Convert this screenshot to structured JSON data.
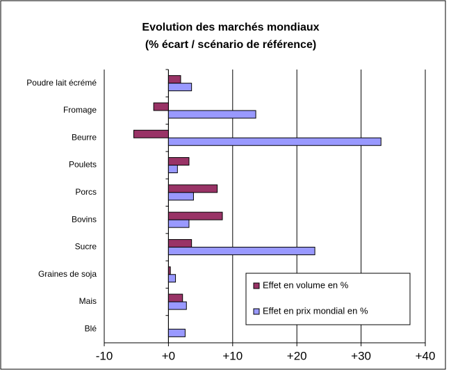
{
  "chart_data": {
    "type": "barh",
    "title": "Evolution des marchés mondiaux",
    "subtitle": "(% écart / scénario de référence)",
    "categories": [
      "Poudre lait écrémé",
      "Fromage",
      "Beurre",
      "Poulets",
      "Porcs",
      "Bovins",
      "Sucre",
      "Graines de soja",
      "Mais",
      "Blé"
    ],
    "series": [
      {
        "name": "Effet en volume en %",
        "color": "#993366",
        "values": [
          1.9,
          -2.3,
          -5.4,
          3.2,
          7.6,
          8.4,
          3.6,
          0.3,
          2.2,
          0
        ]
      },
      {
        "name": "Effet en prix mondial en %",
        "color": "#9999ff",
        "values": [
          3.6,
          13.6,
          33.1,
          1.4,
          3.9,
          3.2,
          22.8,
          1.1,
          2.8,
          2.6
        ]
      }
    ],
    "xlim": [
      -10,
      40
    ],
    "xticks": [
      -10,
      {
        "value": 0,
        "label": "+0"
      },
      {
        "value": 10,
        "label": "+10"
      },
      {
        "value": 20,
        "label": "+20"
      },
      {
        "value": 30,
        "label": "+30"
      },
      {
        "value": 40,
        "label": "+40"
      }
    ],
    "grid": true,
    "legend": "lower right"
  }
}
